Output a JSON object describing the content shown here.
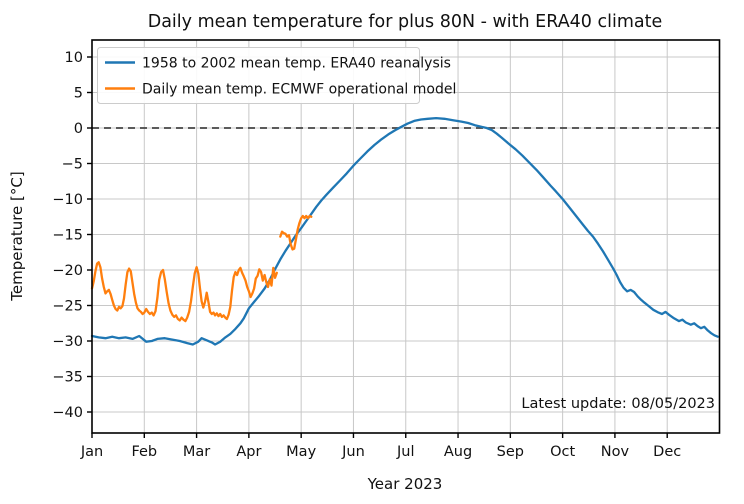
{
  "chart_data": {
    "type": "line",
    "title": "Daily mean temperature for plus 80N - with ERA40 climate",
    "xlabel": "Year 2023",
    "ylabel": "Temperature [°C]",
    "ylim": [
      -43,
      12.4
    ],
    "xlim_days": [
      1,
      365
    ],
    "grid": true,
    "legend_position": "upper left",
    "zero_reference_line": 0,
    "annotation": "Latest update: 08/05/2023",
    "yticks": {
      "values": [
        10,
        5,
        0,
        -5,
        -10,
        -15,
        -20,
        -25,
        -30,
        -35,
        -40
      ],
      "labels": [
        "10",
        "5",
        "0",
        "−5",
        "−10",
        "−15",
        "−20",
        "−25",
        "−30",
        "−35",
        "−40"
      ]
    },
    "months": [
      "Jan",
      "Feb",
      "Mar",
      "Apr",
      "May",
      "Jun",
      "Jul",
      "Aug",
      "Sep",
      "Oct",
      "Nov",
      "Dec"
    ],
    "month_lengths": [
      31,
      28,
      31,
      30,
      31,
      30,
      31,
      31,
      30,
      31,
      30,
      31
    ],
    "series": [
      {
        "name": "1958 to 2002 mean temp. ERA40 reanalysis",
        "color": "#1f77b4",
        "points": [
          [
            1,
            -29.3
          ],
          [
            5,
            -29.5
          ],
          [
            9,
            -29.6
          ],
          [
            13,
            -29.4
          ],
          [
            17,
            -29.6
          ],
          [
            21,
            -29.5
          ],
          [
            25,
            -29.7
          ],
          [
            29,
            -29.3
          ],
          [
            33,
            -30.1
          ],
          [
            36,
            -30.0
          ],
          [
            39,
            -29.7
          ],
          [
            43,
            -29.6
          ],
          [
            47,
            -29.8
          ],
          [
            51,
            -30.0
          ],
          [
            55,
            -30.3
          ],
          [
            58,
            -30.5
          ],
          [
            61,
            -30.1
          ],
          [
            63,
            -29.6
          ],
          [
            66,
            -29.9
          ],
          [
            69,
            -30.2
          ],
          [
            71,
            -30.5
          ],
          [
            74,
            -30.1
          ],
          [
            77,
            -29.5
          ],
          [
            80,
            -29.0
          ],
          [
            83,
            -28.3
          ],
          [
            86,
            -27.5
          ],
          [
            88,
            -26.8
          ],
          [
            91,
            -25.4
          ],
          [
            94,
            -24.5
          ],
          [
            97,
            -23.6
          ],
          [
            100,
            -22.6
          ],
          [
            103,
            -21.4
          ],
          [
            106,
            -19.9
          ],
          [
            109,
            -18.5
          ],
          [
            112,
            -17.3
          ],
          [
            115,
            -16.2
          ],
          [
            118,
            -15.1
          ],
          [
            121,
            -14.1
          ],
          [
            124,
            -13.1
          ],
          [
            127,
            -12.1
          ],
          [
            130,
            -11.1
          ],
          [
            133,
            -10.2
          ],
          [
            136,
            -9.4
          ],
          [
            140,
            -8.4
          ],
          [
            144,
            -7.4
          ],
          [
            148,
            -6.4
          ],
          [
            152,
            -5.3
          ],
          [
            156,
            -4.3
          ],
          [
            160,
            -3.3
          ],
          [
            164,
            -2.4
          ],
          [
            168,
            -1.6
          ],
          [
            172,
            -0.9
          ],
          [
            176,
            -0.3
          ],
          [
            179,
            0.1
          ],
          [
            183,
            0.6
          ],
          [
            187,
            1.0
          ],
          [
            191,
            1.2
          ],
          [
            195,
            1.3
          ],
          [
            200,
            1.4
          ],
          [
            205,
            1.3
          ],
          [
            210,
            1.1
          ],
          [
            215,
            0.9
          ],
          [
            219,
            0.7
          ],
          [
            223,
            0.4
          ],
          [
            227,
            0.15
          ],
          [
            230,
            0.0
          ],
          [
            233,
            -0.3
          ],
          [
            236,
            -0.8
          ],
          [
            239,
            -1.4
          ],
          [
            243,
            -2.2
          ],
          [
            247,
            -3.0
          ],
          [
            251,
            -3.9
          ],
          [
            255,
            -4.9
          ],
          [
            259,
            -5.9
          ],
          [
            263,
            -7.0
          ],
          [
            267,
            -8.1
          ],
          [
            270,
            -8.9
          ],
          [
            274,
            -10.0
          ],
          [
            278,
            -11.2
          ],
          [
            282,
            -12.4
          ],
          [
            286,
            -13.6
          ],
          [
            289,
            -14.5
          ],
          [
            292,
            -15.3
          ],
          [
            295,
            -16.3
          ],
          [
            298,
            -17.4
          ],
          [
            301,
            -18.6
          ],
          [
            304,
            -19.8
          ],
          [
            306,
            -20.7
          ],
          [
            308,
            -21.7
          ],
          [
            310,
            -22.5
          ],
          [
            312,
            -23.0
          ],
          [
            314,
            -22.8
          ],
          [
            316,
            -23.1
          ],
          [
            318,
            -23.7
          ],
          [
            320,
            -24.2
          ],
          [
            322,
            -24.6
          ],
          [
            324,
            -25.0
          ],
          [
            327,
            -25.6
          ],
          [
            330,
            -26.0
          ],
          [
            332,
            -26.2
          ],
          [
            334,
            -25.9
          ],
          [
            336,
            -26.3
          ],
          [
            339,
            -26.8
          ],
          [
            342,
            -27.2
          ],
          [
            344,
            -27.0
          ],
          [
            346,
            -27.4
          ],
          [
            349,
            -27.7
          ],
          [
            351,
            -27.5
          ],
          [
            353,
            -27.9
          ],
          [
            355,
            -28.2
          ],
          [
            357,
            -28.0
          ],
          [
            359,
            -28.5
          ],
          [
            361,
            -28.9
          ],
          [
            363,
            -29.2
          ],
          [
            365,
            -29.4
          ]
        ]
      },
      {
        "name": "Daily mean temp. ECMWF operational model",
        "color": "#ff7f0e",
        "points": [
          [
            1,
            -22.6
          ],
          [
            2,
            -21.6
          ],
          [
            3,
            -20.2
          ],
          [
            4,
            -19.1
          ],
          [
            5,
            -18.9
          ],
          [
            6,
            -19.6
          ],
          [
            7,
            -21.2
          ],
          [
            8,
            -22.4
          ],
          [
            9,
            -23.3
          ],
          [
            10,
            -23.0
          ],
          [
            11,
            -22.8
          ],
          [
            12,
            -23.4
          ],
          [
            13,
            -24.2
          ],
          [
            14,
            -25.0
          ],
          [
            15,
            -25.5
          ],
          [
            16,
            -25.7
          ],
          [
            17,
            -25.2
          ],
          [
            18,
            -25.4
          ],
          [
            19,
            -25.1
          ],
          [
            20,
            -24.0
          ],
          [
            21,
            -22.0
          ],
          [
            22,
            -20.3
          ],
          [
            23,
            -19.8
          ],
          [
            24,
            -20.2
          ],
          [
            25,
            -21.8
          ],
          [
            26,
            -23.4
          ],
          [
            27,
            -24.6
          ],
          [
            28,
            -25.4
          ],
          [
            29,
            -25.7
          ],
          [
            30,
            -25.9
          ],
          [
            31,
            -26.2
          ],
          [
            32,
            -26.0
          ],
          [
            33,
            -25.5
          ],
          [
            34,
            -25.9
          ],
          [
            35,
            -26.2
          ],
          [
            36,
            -26.0
          ],
          [
            37,
            -26.4
          ],
          [
            38,
            -25.8
          ],
          [
            39,
            -23.9
          ],
          [
            40,
            -21.4
          ],
          [
            41,
            -20.3
          ],
          [
            42,
            -20.0
          ],
          [
            43,
            -21.3
          ],
          [
            44,
            -23.1
          ],
          [
            45,
            -24.7
          ],
          [
            46,
            -25.7
          ],
          [
            47,
            -26.3
          ],
          [
            48,
            -26.6
          ],
          [
            49,
            -26.4
          ],
          [
            50,
            -26.9
          ],
          [
            51,
            -27.1
          ],
          [
            52,
            -26.7
          ],
          [
            53,
            -27.0
          ],
          [
            54,
            -27.2
          ],
          [
            55,
            -26.7
          ],
          [
            56,
            -25.9
          ],
          [
            57,
            -24.4
          ],
          [
            58,
            -22.4
          ],
          [
            59,
            -20.5
          ],
          [
            60,
            -19.6
          ],
          [
            61,
            -20.5
          ],
          [
            62,
            -22.6
          ],
          [
            63,
            -24.4
          ],
          [
            64,
            -25.3
          ],
          [
            65,
            -24.5
          ],
          [
            66,
            -23.2
          ],
          [
            67,
            -24.5
          ],
          [
            68,
            -25.9
          ],
          [
            69,
            -26.2
          ],
          [
            70,
            -26.0
          ],
          [
            71,
            -26.4
          ],
          [
            72,
            -26.1
          ],
          [
            73,
            -26.5
          ],
          [
            74,
            -26.2
          ],
          [
            75,
            -26.6
          ],
          [
            76,
            -26.4
          ],
          [
            77,
            -26.7
          ],
          [
            78,
            -26.9
          ],
          [
            79,
            -26.3
          ],
          [
            80,
            -25.2
          ],
          [
            81,
            -22.9
          ],
          [
            82,
            -21.0
          ],
          [
            83,
            -20.3
          ],
          [
            84,
            -20.7
          ],
          [
            85,
            -20.0
          ],
          [
            86,
            -19.7
          ],
          [
            87,
            -20.4
          ],
          [
            88,
            -20.9
          ],
          [
            89,
            -21.5
          ],
          [
            90,
            -22.4
          ],
          [
            91,
            -23.0
          ],
          [
            92,
            -23.8
          ],
          [
            93,
            -23.3
          ],
          [
            94,
            -22.6
          ],
          [
            95,
            -21.2
          ],
          [
            96,
            -20.8
          ],
          [
            97,
            -19.9
          ],
          [
            98,
            -20.3
          ],
          [
            99,
            -21.5
          ],
          [
            100,
            -20.7
          ],
          [
            101,
            -21.7
          ],
          [
            102,
            -22.4
          ],
          [
            103,
            -21.3
          ],
          [
            104,
            -22.2
          ],
          [
            105,
            -19.7
          ],
          [
            106,
            -21.1
          ],
          [
            107,
            -20.4
          ],
          [
            108,
            null
          ],
          [
            109,
            -15.3
          ],
          [
            110,
            -14.6
          ],
          [
            111,
            -14.8
          ],
          [
            112,
            -14.9
          ],
          [
            113,
            -15.3
          ],
          [
            114,
            -15.1
          ],
          [
            115,
            -16.4
          ],
          [
            116,
            -17.1
          ],
          [
            117,
            -17.0
          ],
          [
            118,
            -15.7
          ],
          [
            119,
            -14.3
          ],
          [
            120,
            -13.4
          ],
          [
            121,
            -12.7
          ],
          [
            122,
            -12.4
          ],
          [
            123,
            -12.7
          ],
          [
            124,
            -12.4
          ],
          [
            125,
            -12.7
          ],
          [
            126,
            -12.4
          ],
          [
            127,
            -12.5
          ]
        ]
      }
    ]
  },
  "colors": {
    "grid": "#c8c8c8",
    "axis": "#000000",
    "zero_line": "#444444",
    "background": "#ffffff",
    "legend_border": "#cccccc",
    "legend_background": "#ffffff"
  }
}
